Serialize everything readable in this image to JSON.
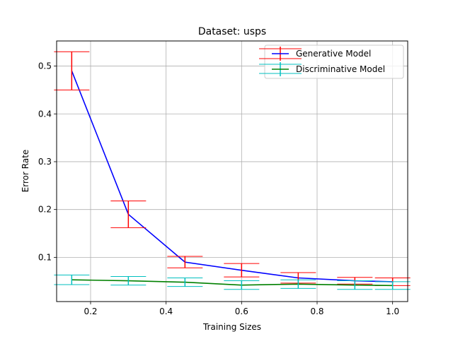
{
  "chart_data": {
    "type": "line",
    "title": "Dataset: usps",
    "xlabel": "Training Sizes",
    "ylabel": "Error Rate",
    "xlim": [
      0.11,
      1.04
    ],
    "ylim": [
      0.0075,
      0.5525
    ],
    "xticks": [
      0.2,
      0.4,
      0.6,
      0.8,
      1.0
    ],
    "xtick_labels": [
      "0.2",
      "0.4",
      "0.6",
      "0.8",
      "1.0"
    ],
    "yticks": [
      0.1,
      0.2,
      0.3,
      0.4,
      0.5
    ],
    "ytick_labels": [
      "0.1",
      "0.2",
      "0.3",
      "0.4",
      "0.5"
    ],
    "grid": true,
    "legend_position": "top-right",
    "x": [
      0.15,
      0.3,
      0.45,
      0.6,
      0.75,
      0.9,
      1.0
    ],
    "series": [
      {
        "name": "Generative Model",
        "color": "#0000ff",
        "errorbar_color": "#ff0000",
        "values": [
          0.49,
          0.19,
          0.09,
          0.073,
          0.057,
          0.051,
          0.049
        ],
        "error": [
          0.04,
          0.028,
          0.012,
          0.014,
          0.011,
          0.007,
          0.008
        ]
      },
      {
        "name": "Discriminative Model",
        "color": "#008000",
        "errorbar_color": "#00bfbf",
        "values": [
          0.053,
          0.051,
          0.048,
          0.042,
          0.044,
          0.042,
          0.041
        ],
        "error": [
          0.01,
          0.009,
          0.009,
          0.009,
          0.009,
          0.009,
          0.008
        ]
      }
    ]
  }
}
